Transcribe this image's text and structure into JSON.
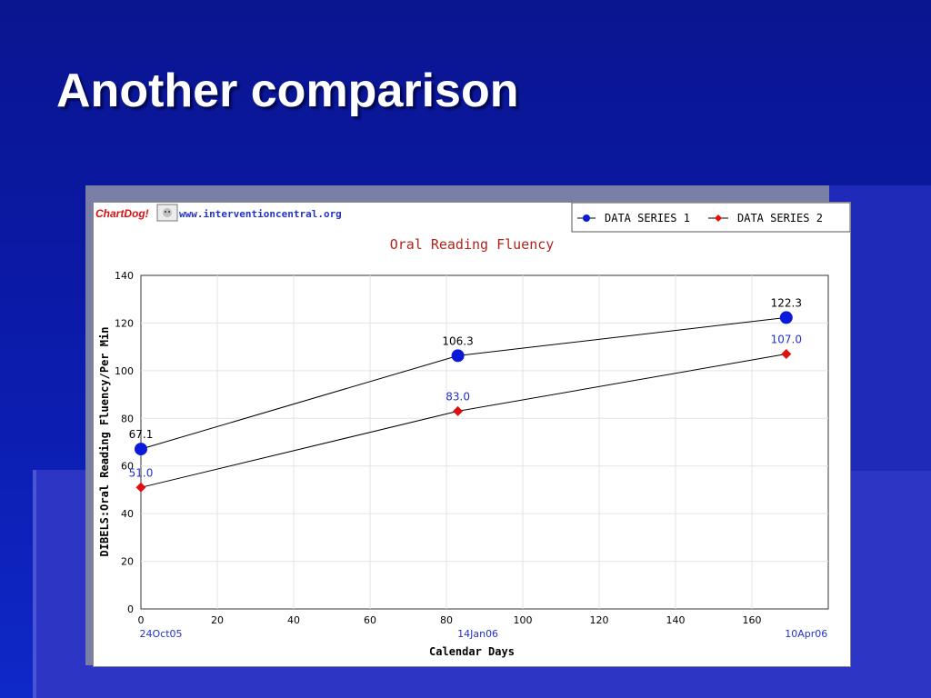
{
  "slide": {
    "title": "Another comparison"
  },
  "colors": {
    "background": "#0b1aa8",
    "series1": "#0b1ad8",
    "series2": "#dd1111",
    "title": "#b0251a",
    "blue_text": "#2233cc"
  },
  "watermark": {
    "brand": "ChartDog!",
    "url": "www.interventioncentral.org",
    "icon": "dog-icon"
  },
  "chart_data": {
    "type": "line",
    "title": "Oral Reading Fluency",
    "xlabel": "Calendar Days",
    "ylabel": "DIBELS:Oral Reading Fluency/Per Min",
    "xlim": [
      0,
      180
    ],
    "ylim": [
      0,
      140
    ],
    "xticks": [
      0,
      20,
      40,
      60,
      80,
      100,
      120,
      140,
      160
    ],
    "yticks": [
      0,
      20,
      40,
      60,
      80,
      100,
      120,
      140
    ],
    "grid": true,
    "legend_position": "top-right",
    "date_labels": [
      {
        "x": 0,
        "label": "24Oct05"
      },
      {
        "x": 83,
        "label": "14Jan06"
      },
      {
        "x": 169,
        "label": "10Apr06"
      }
    ],
    "series": [
      {
        "name": "DATA SERIES 1",
        "marker": "circle",
        "x": [
          0,
          83,
          169
        ],
        "values": [
          67.1,
          106.3,
          122.3
        ],
        "labels": [
          "67.1",
          "106.3",
          "122.3"
        ]
      },
      {
        "name": "DATA SERIES 2",
        "marker": "diamond",
        "x": [
          0,
          83,
          169
        ],
        "values": [
          51.0,
          83.0,
          107.0
        ],
        "labels": [
          "51.0",
          "83.0",
          "107.0"
        ]
      }
    ]
  }
}
